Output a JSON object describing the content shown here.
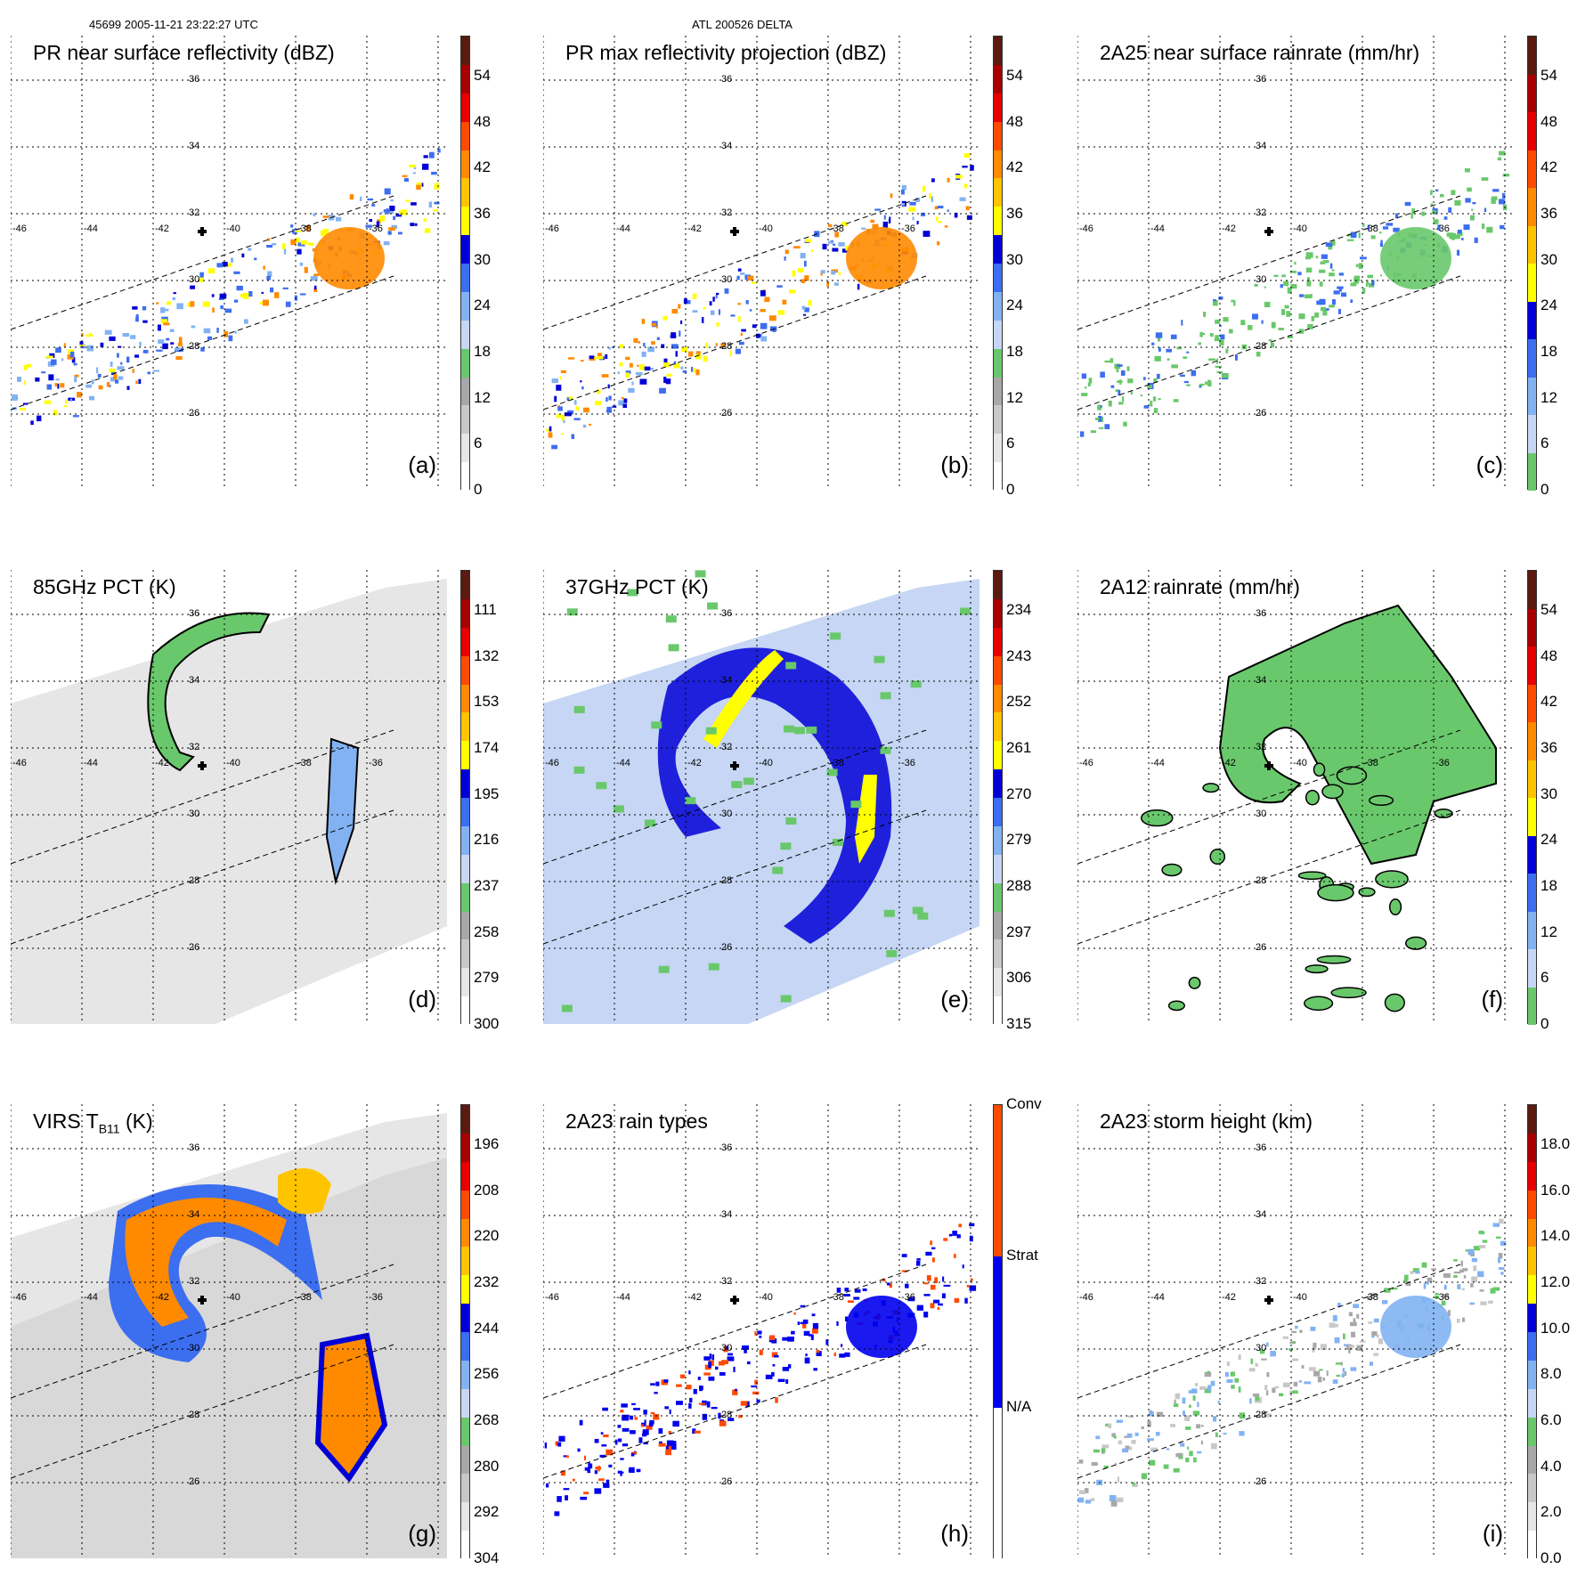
{
  "header": {
    "left": "45699 2005-11-21 23:22:27 UTC",
    "center": "ATL 200526 DELTA"
  },
  "axes": {
    "lon_labels": [
      "-46",
      "-44",
      "-42",
      "-40",
      "-38",
      "-36"
    ],
    "lat_labels": [
      "36",
      "34",
      "32",
      "30",
      "28",
      "26"
    ]
  },
  "panels": [
    {
      "id": "a",
      "title": "PR near surface reflectivity (dBZ)",
      "label": "(a)",
      "ticks": [
        "54",
        "48",
        "42",
        "36",
        "30",
        "24",
        "18",
        "12",
        "6",
        "0"
      ],
      "scheme": "refl",
      "field": "swath"
    },
    {
      "id": "b",
      "title": "PR max reflectivity projection (dBZ)",
      "label": "(b)",
      "ticks": [
        "54",
        "48",
        "42",
        "36",
        "30",
        "24",
        "18",
        "12",
        "6",
        "0"
      ],
      "scheme": "refl",
      "field": "swath"
    },
    {
      "id": "c",
      "title": "2A25 near surface rainrate (mm/hr)",
      "label": "(c)",
      "ticks": [
        "54",
        "48",
        "42",
        "36",
        "30",
        "24",
        "18",
        "12",
        "6",
        "0"
      ],
      "scheme": "rain",
      "field": "swath"
    },
    {
      "id": "d",
      "title": "85GHz PCT (K)",
      "label": "(d)",
      "ticks": [
        "111",
        "132",
        "153",
        "174",
        "195",
        "216",
        "237",
        "258",
        "279",
        "300"
      ],
      "scheme": "pct",
      "field": "wide"
    },
    {
      "id": "e",
      "title": "37GHz PCT (K)",
      "label": "(e)",
      "ticks": [
        "234",
        "243",
        "252",
        "261",
        "270",
        "279",
        "288",
        "297",
        "306",
        "315"
      ],
      "scheme": "pct",
      "field": "wide"
    },
    {
      "id": "f",
      "title": "2A12 rainrate (mm/hr)",
      "label": "(f)",
      "ticks": [
        "54",
        "48",
        "42",
        "36",
        "30",
        "24",
        "18",
        "12",
        "6",
        "0"
      ],
      "scheme": "rain",
      "field": "wide"
    },
    {
      "id": "g",
      "title_main": "VIRS T",
      "title_sub": "B11",
      "title_tail": " (K)",
      "label": "(g)",
      "ticks": [
        "196",
        "208",
        "220",
        "232",
        "244",
        "256",
        "268",
        "280",
        "292",
        "304"
      ],
      "scheme": "virs",
      "field": "wide"
    },
    {
      "id": "h",
      "title": "2A23 rain types",
      "label": "(h)",
      "ticks": [
        "Conv",
        "Strat",
        "N/A"
      ],
      "scheme": "types",
      "field": "swath"
    },
    {
      "id": "i",
      "title": "2A23 storm height (km)",
      "label": "(i)",
      "ticks": [
        "18.0",
        "16.0",
        "14.0",
        "12.0",
        "10.0",
        "8.0",
        "6.0",
        "4.0",
        "2.0",
        "0.0"
      ],
      "scheme": "height",
      "field": "swath"
    }
  ],
  "colors": {
    "refl": [
      "#ffffff",
      "#e6e6e6",
      "#c8c8c8",
      "#a8a8a8",
      "#69c86b",
      "#c6d6f4",
      "#82b2f2",
      "#3c6ef0",
      "#0000d6",
      "#ffff00",
      "#ffc400",
      "#ff8a00",
      "#ff4a00",
      "#e60000",
      "#a80000",
      "#5a1a10"
    ],
    "rain": [
      "#69c86b",
      "#c6d6f4",
      "#82b2f2",
      "#3c6ef0",
      "#0000d6",
      "#ffff00",
      "#ffc400",
      "#ff8a00",
      "#ff4a00",
      "#e60000",
      "#a80000",
      "#5a1a10"
    ],
    "types": [
      "#ffffff",
      "#0000ee",
      "#ff4a00"
    ]
  }
}
